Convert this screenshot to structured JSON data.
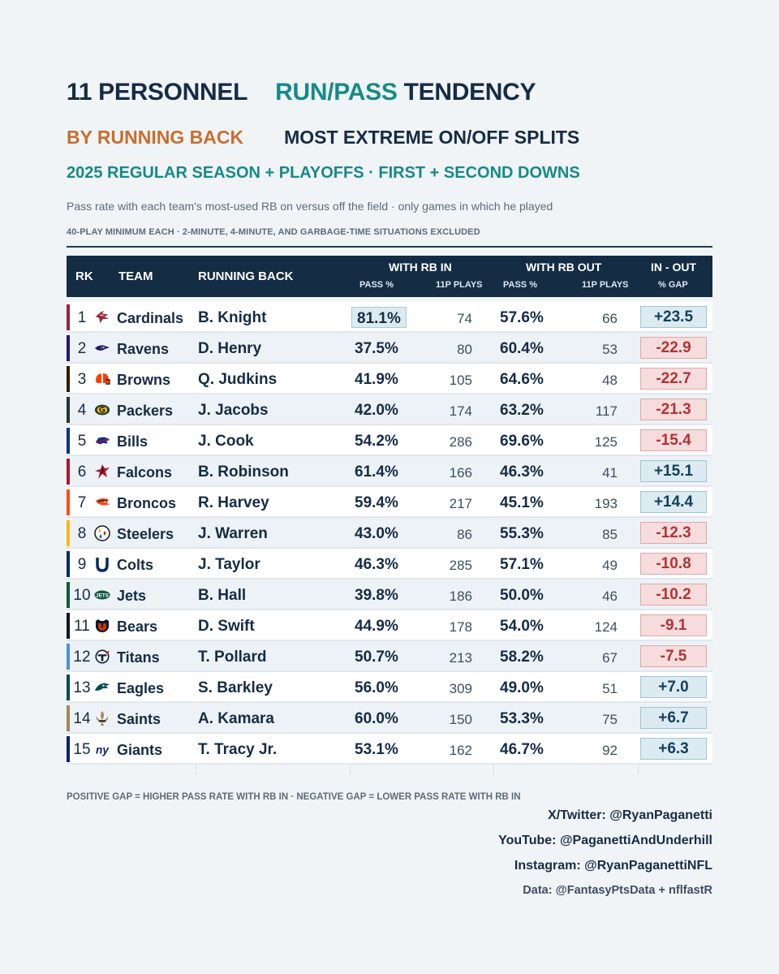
{
  "header": {
    "title_part1": "11 PERSONNEL",
    "title_part2": "RUN/PASS",
    "title_part3": "TENDENCY",
    "subtitle_left": "BY RUNNING BACK",
    "subtitle_right": "MOST EXTREME ON/OFF SPLITS",
    "season": "2025 REGULAR SEASON + PLAYOFFS  ·  FIRST + SECOND DOWNS",
    "description": "Pass rate with each team's most-used RB on versus off the field  ·  only games in which he played",
    "note": "40-PLAY MINIMUM EACH  ·  2-MINUTE, 4-MINUTE, AND GARBAGE-TIME SITUATIONS EXCLUDED"
  },
  "columns": {
    "rk": "RK",
    "team": "TEAM",
    "running_back": "RUNNING BACK",
    "with_rb_in": "WITH RB IN",
    "with_rb_out": "WITH RB OUT",
    "in_out": "IN - OUT",
    "pass_pct": "PASS %",
    "plays_11p": "11P PLAYS",
    "gap": "% GAP"
  },
  "colors": {
    "navy": "#142c44",
    "teal": "#168a88",
    "orange": "#c86e2c",
    "positive_bg": "#dcebf1",
    "negative_bg": "#f6dcdc",
    "negative_text": "#b23434"
  },
  "chart_data": {
    "type": "table",
    "rows": [
      {
        "rk": "1",
        "team": "Cardinals",
        "rb": "B. Knight",
        "pass_in": "81.1%",
        "plays_in": "74",
        "pass_out": "57.6%",
        "plays_out": "66",
        "gap": "+23.5",
        "gap_value": 23.5,
        "team_color": "#97233f",
        "logo": "cardinal-head-icon"
      },
      {
        "rk": "2",
        "team": "Ravens",
        "rb": "D. Henry",
        "pass_in": "37.5%",
        "plays_in": "80",
        "pass_out": "60.4%",
        "plays_out": "53",
        "gap": "-22.9",
        "gap_value": -22.9,
        "team_color": "#241773",
        "logo": "raven-head-icon"
      },
      {
        "rk": "3",
        "team": "Browns",
        "rb": "Q. Judkins",
        "pass_in": "41.9%",
        "plays_in": "105",
        "pass_out": "64.6%",
        "plays_out": "48",
        "gap": "-22.7",
        "gap_value": -22.7,
        "team_color": "#311d00",
        "logo": "browns-helmet-icon"
      },
      {
        "rk": "4",
        "team": "Packers",
        "rb": "J. Jacobs",
        "pass_in": "42.0%",
        "plays_in": "174",
        "pass_out": "63.2%",
        "plays_out": "117",
        "gap": "-21.3",
        "gap_value": -21.3,
        "team_color": "#203731",
        "logo": "packers-g-icon"
      },
      {
        "rk": "5",
        "team": "Bills",
        "rb": "J. Cook",
        "pass_in": "54.2%",
        "plays_in": "286",
        "pass_out": "69.6%",
        "plays_out": "125",
        "gap": "-15.4",
        "gap_value": -15.4,
        "team_color": "#00338d",
        "logo": "bison-icon"
      },
      {
        "rk": "6",
        "team": "Falcons",
        "rb": "B. Robinson",
        "pass_in": "61.4%",
        "plays_in": "166",
        "pass_out": "46.3%",
        "plays_out": "41",
        "gap": "+15.1",
        "gap_value": 15.1,
        "team_color": "#a71930",
        "logo": "falcon-icon"
      },
      {
        "rk": "7",
        "team": "Broncos",
        "rb": "R. Harvey",
        "pass_in": "59.4%",
        "plays_in": "217",
        "pass_out": "45.1%",
        "plays_out": "193",
        "gap": "+14.4",
        "gap_value": 14.4,
        "team_color": "#fb4f14",
        "logo": "bronco-head-icon"
      },
      {
        "rk": "8",
        "team": "Steelers",
        "rb": "J. Warren",
        "pass_in": "43.0%",
        "plays_in": "86",
        "pass_out": "55.3%",
        "plays_out": "85",
        "gap": "-12.3",
        "gap_value": -12.3,
        "team_color": "#ffb612",
        "logo": "steelers-logo-icon"
      },
      {
        "rk": "9",
        "team": "Colts",
        "rb": "J. Taylor",
        "pass_in": "46.3%",
        "plays_in": "285",
        "pass_out": "57.1%",
        "plays_out": "49",
        "gap": "-10.8",
        "gap_value": -10.8,
        "team_color": "#002c5f",
        "logo": "horseshoe-icon"
      },
      {
        "rk": "10",
        "team": "Jets",
        "rb": "B. Hall",
        "pass_in": "39.8%",
        "plays_in": "186",
        "pass_out": "50.0%",
        "plays_out": "46",
        "gap": "-10.2",
        "gap_value": -10.2,
        "team_color": "#125740",
        "logo": "jets-logo-icon"
      },
      {
        "rk": "11",
        "team": "Bears",
        "rb": "D. Swift",
        "pass_in": "44.9%",
        "plays_in": "178",
        "pass_out": "54.0%",
        "plays_out": "124",
        "gap": "-9.1",
        "gap_value": -9.1,
        "team_color": "#0b162a",
        "logo": "bear-head-icon"
      },
      {
        "rk": "12",
        "team": "Titans",
        "rb": "T. Pollard",
        "pass_in": "50.7%",
        "plays_in": "213",
        "pass_out": "58.2%",
        "plays_out": "67",
        "gap": "-7.5",
        "gap_value": -7.5,
        "team_color": "#4b92db",
        "logo": "titans-t-icon"
      },
      {
        "rk": "13",
        "team": "Eagles",
        "rb": "S. Barkley",
        "pass_in": "56.0%",
        "plays_in": "309",
        "pass_out": "49.0%",
        "plays_out": "51",
        "gap": "+7.0",
        "gap_value": 7.0,
        "team_color": "#004c54",
        "logo": "eagle-head-icon"
      },
      {
        "rk": "14",
        "team": "Saints",
        "rb": "A. Kamara",
        "pass_in": "60.0%",
        "plays_in": "150",
        "pass_out": "53.3%",
        "plays_out": "75",
        "gap": "+6.7",
        "gap_value": 6.7,
        "team_color": "#a08a58",
        "logo": "fleur-de-lis-icon"
      },
      {
        "rk": "15",
        "team": "Giants",
        "rb": "T. Tracy Jr.",
        "pass_in": "53.1%",
        "plays_in": "162",
        "pass_out": "46.7%",
        "plays_out": "92",
        "gap": "+6.3",
        "gap_value": 6.3,
        "team_color": "#0b2265",
        "logo": "ny-logo-icon"
      }
    ]
  },
  "footer": {
    "legend": "POSITIVE GAP = HIGHER PASS RATE WITH RB IN  ·  NEGATIVE GAP = LOWER PASS RATE WITH RB IN",
    "twitter": "X/Twitter: @RyanPaganetti",
    "youtube": "YouTube: @PaganettiAndUnderhill",
    "instagram": "Instagram: @RyanPaganettiNFL",
    "data_source": "Data: @FantasyPtsData + nflfastR"
  }
}
